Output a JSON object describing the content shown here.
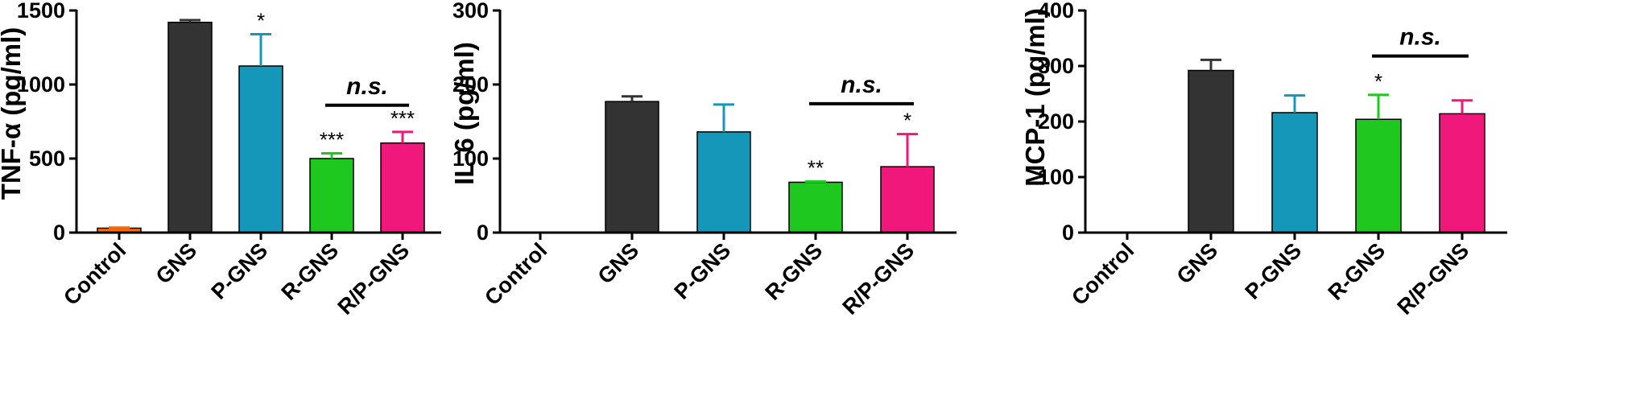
{
  "chart_data": [
    {
      "type": "bar",
      "title": "",
      "ylabel": "TNF-α (pg/ml)",
      "xlabel": "",
      "ylim": [
        0,
        1500
      ],
      "yticks": [
        0,
        500,
        1000,
        1500
      ],
      "categories": [
        "Control",
        "GNS",
        "P-GNS",
        "R-GNS",
        "R/P-GNS"
      ],
      "values": [
        30,
        1420,
        1125,
        500,
        605
      ],
      "errors": [
        4,
        15,
        215,
        35,
        75
      ],
      "colors": [
        "#FF6A00",
        "#333333",
        "#1497B8",
        "#1EC81E",
        "#F0187A"
      ],
      "significance": [
        "",
        "",
        "*",
        "***",
        "***"
      ],
      "comparison": {
        "label": "n.s.",
        "between": [
          "R-GNS",
          "R/P-GNS"
        ],
        "y": 860
      }
    },
    {
      "type": "bar",
      "title": "",
      "ylabel": "IL-6 (pg/ml)",
      "xlabel": "",
      "ylim": [
        0,
        300
      ],
      "yticks": [
        0,
        100,
        200,
        300
      ],
      "categories": [
        "Control",
        "GNS",
        "P-GNS",
        "R-GNS",
        "R/P-GNS"
      ],
      "values": [
        0,
        177,
        136,
        68,
        89
      ],
      "errors": [
        0,
        7,
        37,
        1,
        44
      ],
      "colors": [
        "#FF6A00",
        "#333333",
        "#1497B8",
        "#1EC81E",
        "#F0187A"
      ],
      "significance": [
        "",
        "",
        "",
        "**",
        "*"
      ],
      "comparison": {
        "label": "n.s.",
        "between": [
          "R-GNS",
          "R/P-GNS"
        ],
        "y": 174
      }
    },
    {
      "type": "bar",
      "title": "",
      "ylabel": "MCP-1 (pg/ml)",
      "xlabel": "",
      "ylim": [
        0,
        400
      ],
      "yticks": [
        0,
        100,
        200,
        300,
        400
      ],
      "categories": [
        "Control",
        "GNS",
        "P-GNS",
        "R-GNS",
        "R/P-GNS"
      ],
      "values": [
        0,
        292,
        216,
        204,
        214
      ],
      "errors": [
        0,
        19,
        31,
        44,
        24
      ],
      "colors": [
        "#FF6A00",
        "#333333",
        "#1497B8",
        "#1EC81E",
        "#F0187A"
      ],
      "significance": [
        "",
        "",
        "",
        "*",
        ""
      ],
      "comparison": {
        "label": "n.s.",
        "between": [
          "R-GNS",
          "R/P-GNS"
        ],
        "y": 318
      }
    }
  ]
}
